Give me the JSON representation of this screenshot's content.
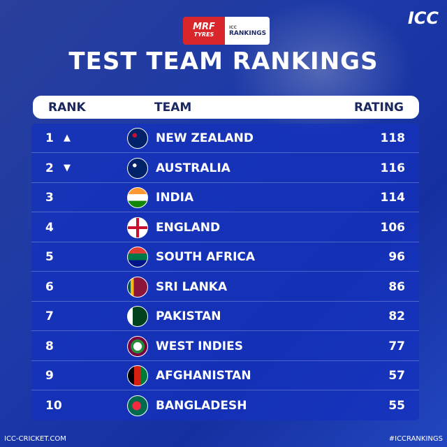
{
  "sponsor": {
    "brand": "MRF",
    "brand_sub": "TYRES",
    "icc_small": "ICC",
    "rankings": "RANKINGS"
  },
  "logo": "ICC",
  "title": "TEST TEAM RANKINGS",
  "headers": {
    "rank": "RANK",
    "team": "TEAM",
    "rating": "RATING"
  },
  "rows": [
    {
      "rank": "1",
      "arrow": "▲",
      "team": "NEW ZEALAND",
      "rating": "118",
      "flag": "nz"
    },
    {
      "rank": "2",
      "arrow": "▼",
      "team": "AUSTRALIA",
      "rating": "116",
      "flag": "au"
    },
    {
      "rank": "3",
      "arrow": "",
      "team": "INDIA",
      "rating": "114",
      "flag": "in"
    },
    {
      "rank": "4",
      "arrow": "",
      "team": "ENGLAND",
      "rating": "106",
      "flag": "en"
    },
    {
      "rank": "5",
      "arrow": "",
      "team": "SOUTH AFRICA",
      "rating": "96",
      "flag": "sa"
    },
    {
      "rank": "6",
      "arrow": "",
      "team": "SRI LANKA",
      "rating": "86",
      "flag": "sl"
    },
    {
      "rank": "7",
      "arrow": "",
      "team": "PAKISTAN",
      "rating": "82",
      "flag": "pk"
    },
    {
      "rank": "8",
      "arrow": "",
      "team": "WEST INDIES",
      "rating": "77",
      "flag": "wi"
    },
    {
      "rank": "9",
      "arrow": "",
      "team": "AFGHANISTAN",
      "rating": "57",
      "flag": "af"
    },
    {
      "rank": "10",
      "arrow": "",
      "team": "BANGLADESH",
      "rating": "55",
      "flag": "bd"
    }
  ],
  "footer": {
    "left": "ICC-CRICKET.COM",
    "right": "#ICCRANKINGS"
  }
}
